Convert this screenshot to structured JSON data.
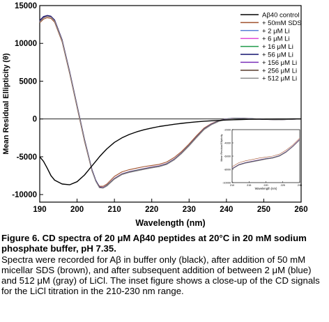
{
  "chart_data": [
    {
      "type": "line",
      "xlabel": "Wavelength (nm)",
      "ylabel": "Mean Residual Ellipticity (θ)",
      "xlim": [
        190,
        260
      ],
      "ylim": [
        -11000,
        15000
      ],
      "xticks": [
        "190",
        "200",
        "210",
        "220",
        "230",
        "240",
        "250",
        "260"
      ],
      "yticks": [
        "15000",
        "10000",
        "5000",
        "0",
        "-5000",
        "-10000"
      ],
      "legend_position": "top-right",
      "grid": false,
      "x": [
        190,
        191,
        192,
        193,
        194,
        196,
        198,
        200,
        202,
        204,
        205,
        206,
        207,
        208,
        210,
        212,
        214,
        216,
        218,
        220,
        222,
        224,
        226,
        228,
        230,
        232,
        234,
        236,
        238,
        240,
        242,
        244,
        246,
        248,
        250,
        252,
        254,
        256,
        258,
        260
      ],
      "series": [
        {
          "name": "Aβ40 control",
          "color": "#000000",
          "values": [
            -5000,
            -5600,
            -6500,
            -7500,
            -8100,
            -8600,
            -8700,
            -8300,
            -7400,
            -6200,
            -5600,
            -5000,
            -4450,
            -3950,
            -3100,
            -2500,
            -2050,
            -1700,
            -1420,
            -1200,
            -1000,
            -850,
            -700,
            -580,
            -470,
            -380,
            -300,
            -240,
            -190,
            -140,
            -100,
            -70,
            -50,
            -30,
            -20,
            -10,
            0,
            0,
            10,
            10
          ]
        },
        {
          "name": "+ 50mM SDS",
          "color": "#a0522d",
          "values": [
            12700,
            13200,
            13400,
            13300,
            12800,
            10200,
            6000,
            1500,
            -3000,
            -6900,
            -8200,
            -8900,
            -8900,
            -8600,
            -7600,
            -7000,
            -6700,
            -6500,
            -6300,
            -6150,
            -6000,
            -5700,
            -5100,
            -4300,
            -3300,
            -2200,
            -1200,
            -600,
            -200,
            0,
            100,
            100,
            50,
            0,
            -30,
            -60,
            -80,
            -50,
            -30,
            0
          ]
        },
        {
          "name": "+ 2 μM Li",
          "color": "#5b7fd6",
          "values": [
            12900,
            13400,
            13600,
            13500,
            13000,
            10400,
            6200,
            1700,
            -2800,
            -6800,
            -8200,
            -9050,
            -9100,
            -8800,
            -7900,
            -7300,
            -7000,
            -6800,
            -6600,
            -6400,
            -6250,
            -5950,
            -5350,
            -4500,
            -3500,
            -2400,
            -1350,
            -700,
            -250,
            0,
            80,
            100,
            50,
            0,
            -40,
            -70,
            -90,
            -60,
            -30,
            0
          ]
        },
        {
          "name": "+ 6 μM Li",
          "color": "#e04ad6",
          "values": [
            13000,
            13500,
            13650,
            13550,
            13050,
            10450,
            6250,
            1750,
            -2750,
            -6750,
            -8150,
            -9000,
            -9050,
            -8750,
            -7850,
            -7250,
            -6950,
            -6750,
            -6550,
            -6350,
            -6200,
            -5900,
            -5300,
            -4450,
            -3450,
            -2350,
            -1300,
            -650,
            -220,
            20,
            100,
            110,
            60,
            10,
            -30,
            -60,
            -80,
            -50,
            -20,
            0
          ]
        },
        {
          "name": "+ 16 μM Li",
          "color": "#1f9a4a",
          "values": [
            12950,
            13450,
            13620,
            13520,
            13020,
            10420,
            6220,
            1720,
            -2780,
            -6780,
            -8180,
            -9030,
            -9080,
            -8780,
            -7880,
            -7280,
            -6980,
            -6780,
            -6580,
            -6380,
            -6230,
            -5930,
            -5330,
            -4480,
            -3480,
            -2380,
            -1330,
            -680,
            -240,
            10,
            90,
            100,
            55,
            5,
            -35,
            -65,
            -85,
            -55,
            -25,
            0
          ]
        },
        {
          "name": "+ 56 μM Li",
          "color": "#14146e",
          "values": [
            13050,
            13550,
            13700,
            13600,
            13100,
            10500,
            6300,
            1800,
            -2700,
            -6700,
            -8100,
            -9000,
            -9100,
            -8820,
            -7920,
            -7320,
            -7020,
            -6820,
            -6620,
            -6420,
            -6270,
            -5970,
            -5370,
            -4520,
            -3520,
            -2420,
            -1370,
            -720,
            -270,
            -10,
            70,
            90,
            40,
            0,
            -45,
            -75,
            -95,
            -65,
            -35,
            0
          ]
        },
        {
          "name": "+ 156 μM Li",
          "color": "#7a2fb8",
          "values": [
            12900,
            13420,
            13600,
            13500,
            13000,
            10400,
            6200,
            1700,
            -2800,
            -6800,
            -8200,
            -9060,
            -9110,
            -8830,
            -7930,
            -7330,
            -7030,
            -6830,
            -6630,
            -6430,
            -6280,
            -5980,
            -5380,
            -4530,
            -3530,
            -2430,
            -1380,
            -730,
            -280,
            -20,
            60,
            80,
            40,
            0,
            -50,
            -80,
            -100,
            -70,
            -40,
            0
          ]
        },
        {
          "name": "+ 256 μM Li",
          "color": "#553a2a",
          "values": [
            12850,
            13380,
            13580,
            13480,
            12980,
            10380,
            6180,
            1680,
            -2820,
            -6820,
            -8220,
            -9080,
            -9130,
            -8850,
            -7950,
            -7350,
            -7050,
            -6850,
            -6650,
            -6450,
            -6300,
            -6000,
            -5400,
            -4550,
            -3550,
            -2450,
            -1400,
            -750,
            -300,
            -30,
            50,
            70,
            30,
            0,
            -50,
            -80,
            -100,
            -70,
            -40,
            0
          ]
        },
        {
          "name": "+ 512 μM Li",
          "color": "#8f8f8f",
          "values": [
            12800,
            13350,
            13550,
            13450,
            12950,
            10350,
            6150,
            1650,
            -2850,
            -6850,
            -8250,
            -9100,
            -9150,
            -8870,
            -7970,
            -7370,
            -7070,
            -6870,
            -6670,
            -6470,
            -6320,
            -6020,
            -5420,
            -4570,
            -3570,
            -2470,
            -1420,
            -770,
            -320,
            -40,
            40,
            60,
            20,
            -10,
            -60,
            -90,
            -110,
            -80,
            -50,
            0
          ]
        }
      ]
    },
    {
      "type": "line",
      "inset": true,
      "xlabel": "Wavelength (nm)",
      "ylabel": "Mean Residual Ellipticity",
      "xlim": [
        210,
        230
      ],
      "ylim": [
        -10000,
        -2000
      ],
      "xticks": [
        "210",
        "215",
        "220",
        "225",
        "230"
      ],
      "yticks": [
        "-2000",
        "-4000",
        "-6000",
        "-8000",
        "-10000"
      ],
      "x": [
        210,
        212,
        214,
        216,
        218,
        220,
        222,
        224,
        226,
        228,
        230
      ],
      "series_values": [
        [
          -7600,
          -7000,
          -6700,
          -6500,
          -6300,
          -6150,
          -6000,
          -5700,
          -5100,
          -4300,
          -3300
        ],
        [
          -7900,
          -7300,
          -7000,
          -6800,
          -6600,
          -6400,
          -6250,
          -5950,
          -5350,
          -4500,
          -3500
        ],
        [
          -7850,
          -7250,
          -6950,
          -6750,
          -6550,
          -6350,
          -6200,
          -5900,
          -5300,
          -4450,
          -3450
        ],
        [
          -7880,
          -7280,
          -6980,
          -6780,
          -6580,
          -6380,
          -6230,
          -5930,
          -5330,
          -4480,
          -3480
        ],
        [
          -7920,
          -7320,
          -7020,
          -6820,
          -6620,
          -6420,
          -6270,
          -5970,
          -5370,
          -4520,
          -3520
        ],
        [
          -7930,
          -7330,
          -7030,
          -6830,
          -6630,
          -6430,
          -6280,
          -5980,
          -5380,
          -4530,
          -3530
        ],
        [
          -7950,
          -7350,
          -7050,
          -6850,
          -6650,
          -6450,
          -6300,
          -6000,
          -5400,
          -4550,
          -3550
        ],
        [
          -7970,
          -7370,
          -7070,
          -6870,
          -6670,
          -6470,
          -6320,
          -6020,
          -5420,
          -4570,
          -3570
        ]
      ],
      "series_colors": [
        "#a0522d",
        "#5b7fd6",
        "#e04ad6",
        "#1f9a4a",
        "#14146e",
        "#7a2fb8",
        "#553a2a",
        "#8f8f8f"
      ]
    }
  ],
  "caption": {
    "title": "Figure 6. CD spectra of 20 μM Aβ40 peptides at 20°C in 20 mM sodium phosphate buffer, pH 7.35.",
    "body": "Spectra were recorded for Aβ in buffer only (black), after addition of 50 mM micellar SDS (brown), and after subsequent addition of between 2 μM (blue) and 512 μM (gray) of LiCl. The inset figure shows a close-up of the CD signals for the LiCl titration in the 210-230 nm range."
  }
}
